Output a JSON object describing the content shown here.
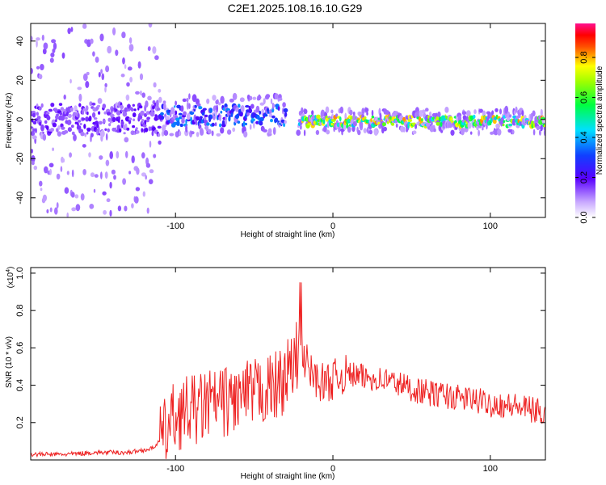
{
  "title": "C2E1.2025.108.16.10.G29",
  "chart_data": [
    {
      "type": "heatmap",
      "xlabel": "Height of straight line (km)",
      "ylabel": "Frequency (Hz)",
      "xlim": [
        -192,
        135
      ],
      "ylim": [
        -50,
        49
      ],
      "xticks": [
        -100,
        0,
        100
      ],
      "xtick_labels": [
        "-100",
        "0",
        "100"
      ],
      "yticks": [
        -40,
        -20,
        0,
        20,
        40
      ],
      "ytick_labels": [
        "-40",
        "-20",
        "0",
        "20",
        "40"
      ],
      "colorbar": {
        "label": "Normalized spectral amplitude",
        "range": [
          0.0,
          0.97
        ],
        "ticks": [
          0.0,
          0.2,
          0.4,
          0.6,
          0.8
        ],
        "tick_labels": [
          "0.0",
          "0.2",
          "0.4",
          "0.6",
          "0.8"
        ],
        "colormap": "rainbow (white-violet-blue-cyan-green-yellow-red-magenta)"
      },
      "regions": [
        {
          "x": [
            -192,
            -110
          ],
          "freq_center": 0,
          "band_halfwidth": 8,
          "scatter_halfwidth": 49,
          "level": 0.18
        },
        {
          "x": [
            -110,
            -30
          ],
          "freq_center": 2,
          "band_halfwidth": 5,
          "scatter_halfwidth": 10,
          "level": 0.35
        },
        {
          "x": [
            -22,
            135
          ],
          "freq_center": -1,
          "band_halfwidth": 2.5,
          "scatter_halfwidth": 6,
          "level": 0.75
        }
      ]
    },
    {
      "type": "line",
      "xlabel": "Height of straight line (km)",
      "ylabel": "SNR (10 * v/v)",
      "y_multiplier_label": "(x10",
      "y_multiplier_exp": "4",
      "xlim": [
        -192,
        135
      ],
      "ylim": [
        0.0,
        1.03
      ],
      "xticks": [
        -100,
        0,
        100
      ],
      "xtick_labels": [
        "-100",
        "0",
        "100"
      ],
      "yticks": [
        0.2,
        0.4,
        0.6,
        0.8,
        1.0
      ],
      "ytick_labels": [
        "0.2",
        "0.4",
        "0.6",
        "0.8",
        "1.0"
      ],
      "series": [
        {
          "color": "#ee2222",
          "x": [
            -192,
            -170,
            -150,
            -130,
            -115,
            -108,
            -103,
            -100,
            -95,
            -90,
            -85,
            -80,
            -75,
            -70,
            -65,
            -60,
            -55,
            -50,
            -45,
            -40,
            -35,
            -30,
            -25,
            -21,
            -18,
            -15,
            -10,
            -5,
            0,
            5,
            10,
            15,
            20,
            25,
            30,
            35,
            40,
            45,
            50,
            55,
            60,
            65,
            70,
            75,
            80,
            85,
            90,
            95,
            100,
            105,
            110,
            115,
            120,
            125,
            130,
            135
          ],
          "y": [
            0.03,
            0.03,
            0.04,
            0.04,
            0.06,
            0.12,
            0.2,
            0.24,
            0.25,
            0.27,
            0.27,
            0.3,
            0.3,
            0.31,
            0.32,
            0.33,
            0.34,
            0.35,
            0.37,
            0.38,
            0.4,
            0.45,
            0.5,
            0.62,
            0.55,
            0.48,
            0.43,
            0.41,
            0.43,
            0.45,
            0.46,
            0.45,
            0.44,
            0.44,
            0.43,
            0.43,
            0.41,
            0.4,
            0.38,
            0.37,
            0.36,
            0.35,
            0.35,
            0.34,
            0.33,
            0.33,
            0.32,
            0.31,
            0.3,
            0.3,
            0.29,
            0.29,
            0.28,
            0.27,
            0.26,
            0.25
          ]
        }
      ]
    }
  ]
}
